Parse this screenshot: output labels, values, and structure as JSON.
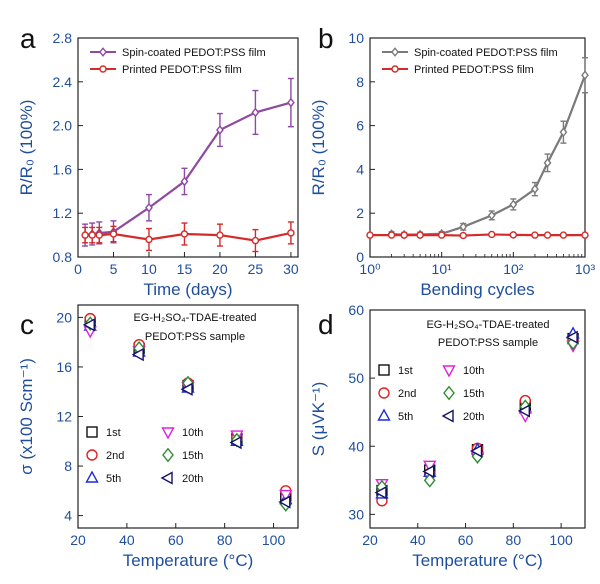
{
  "panels": {
    "a": {
      "letter": "a"
    },
    "b": {
      "letter": "b"
    },
    "c": {
      "letter": "c",
      "annotation_line1": "EG-H₂SO₄-TDAE-treated",
      "annotation_line2": "PEDOT:PSS sample"
    },
    "d": {
      "letter": "d",
      "annotation_line1": "EG-H₂SO₄-TDAE-treated",
      "annotation_line2": "PEDOT:PSS sample"
    }
  },
  "chart_data": [
    {
      "id": "a",
      "type": "line",
      "xlabel": "Time (days)",
      "ylabel": "R/R₀ (100%)",
      "xlim": [
        0,
        31
      ],
      "ylim": [
        0.8,
        2.8
      ],
      "xticks": [
        0,
        5,
        10,
        15,
        20,
        25,
        30
      ],
      "yticks": [
        0.8,
        1.2,
        1.6,
        2.0,
        2.4,
        2.8
      ],
      "xtick_labels": [
        "0",
        "5",
        "10",
        "15",
        "20",
        "25",
        "30"
      ],
      "ytick_labels": [
        "0.8",
        "1.2",
        "1.6",
        "2.0",
        "2.4",
        "2.8"
      ],
      "legend": "top-left",
      "series": [
        {
          "name": "Spin-coated PEDOT:PSS film",
          "color": "#8e4aa0",
          "marker": "diamond",
          "x": [
            1,
            2,
            3,
            5,
            10,
            15,
            20,
            25,
            30
          ],
          "y": [
            1.0,
            1.01,
            1.02,
            1.03,
            1.25,
            1.49,
            1.96,
            2.12,
            2.21
          ],
          "err": [
            0.1,
            0.1,
            0.1,
            0.1,
            0.12,
            0.12,
            0.15,
            0.2,
            0.22
          ]
        },
        {
          "name": "Printed PEDOT:PSS film",
          "color": "#d42a2a",
          "marker": "circle",
          "x": [
            1,
            2,
            3,
            5,
            10,
            15,
            20,
            25,
            30
          ],
          "y": [
            1.0,
            1.0,
            1.0,
            1.01,
            0.96,
            1.01,
            1.0,
            0.95,
            1.02
          ],
          "err": [
            0.07,
            0.07,
            0.07,
            0.07,
            0.1,
            0.1,
            0.1,
            0.1,
            0.1
          ]
        }
      ]
    },
    {
      "id": "b",
      "type": "line",
      "xscale": "log",
      "xlabel": "Bending cycles",
      "ylabel": "R/R₀ (100%)",
      "xlim": [
        1,
        1000
      ],
      "ylim": [
        0,
        10
      ],
      "xticks": [
        1,
        10,
        100,
        1000
      ],
      "yticks": [
        0,
        2,
        4,
        6,
        8,
        10
      ],
      "xtick_labels": [
        "10⁰",
        "10¹",
        "10²",
        "10³"
      ],
      "ytick_labels": [
        "0",
        "2",
        "4",
        "6",
        "8",
        "10"
      ],
      "legend": "top-left",
      "series": [
        {
          "name": "Spin-coated PEDOT:PSS film",
          "color": "#7a7a7a",
          "marker": "diamond",
          "x": [
            2,
            3,
            5,
            10,
            20,
            50,
            100,
            200,
            300,
            500,
            1000
          ],
          "y": [
            1.05,
            1.02,
            1.03,
            1.06,
            1.38,
            1.9,
            2.4,
            3.1,
            4.3,
            5.7,
            8.3
          ],
          "err": [
            0.1,
            0.1,
            0.1,
            0.1,
            0.15,
            0.2,
            0.25,
            0.3,
            0.4,
            0.5,
            0.8
          ]
        },
        {
          "name": "Printed PEDOT:PSS film",
          "color": "#d42a2a",
          "marker": "circle",
          "x": [
            1,
            2,
            3,
            5,
            10,
            20,
            50,
            100,
            200,
            300,
            500,
            1000
          ],
          "y": [
            1.0,
            1.0,
            1.0,
            1.0,
            1.0,
            0.98,
            1.03,
            1.01,
            1.0,
            1.0,
            1.0,
            1.0
          ],
          "err": [
            0.05,
            0.05,
            0.05,
            0.05,
            0.05,
            0.05,
            0.05,
            0.05,
            0.05,
            0.05,
            0.05,
            0.05
          ]
        }
      ]
    },
    {
      "id": "c",
      "type": "scatter",
      "xlabel": "Temperature (°C)",
      "ylabel": "σ (x100 Scm⁻¹)",
      "xlim": [
        20,
        110
      ],
      "ylim": [
        3,
        21
      ],
      "xticks": [
        20,
        40,
        60,
        80,
        100
      ],
      "yticks": [
        4,
        8,
        12,
        16,
        20
      ],
      "xtick_labels": [
        "20",
        "40",
        "60",
        "80",
        "100"
      ],
      "ytick_labels": [
        "4",
        "8",
        "12",
        "16",
        "20"
      ],
      "legend": "center-left",
      "series": [
        {
          "name": "1st",
          "color": "#111111",
          "marker": "square",
          "x": [
            25,
            45,
            65,
            85,
            105
          ],
          "y": [
            19.6,
            17.5,
            14.5,
            10.2,
            5.6
          ]
        },
        {
          "name": "2nd",
          "color": "#e02020",
          "marker": "circle",
          "x": [
            25,
            45,
            65,
            85,
            105
          ],
          "y": [
            19.9,
            17.8,
            14.7,
            10.3,
            6.0
          ]
        },
        {
          "name": "5th",
          "color": "#1a2fd6",
          "marker": "triangle-up",
          "x": [
            25,
            45,
            65,
            85,
            105
          ],
          "y": [
            19.3,
            17.2,
            14.3,
            10.0,
            5.3
          ]
        },
        {
          "name": "10th",
          "color": "#e020e0",
          "marker": "triangle-down",
          "x": [
            25,
            45,
            65,
            85,
            105
          ],
          "y": [
            18.9,
            17.3,
            14.4,
            10.5,
            5.7
          ]
        },
        {
          "name": "15th",
          "color": "#2e8b2e",
          "marker": "diamond",
          "x": [
            25,
            45,
            65,
            85,
            105
          ],
          "y": [
            19.5,
            17.5,
            14.7,
            10.1,
            4.9
          ]
        },
        {
          "name": "20th",
          "color": "#111166",
          "marker": "triangle-left",
          "x": [
            25,
            45,
            65,
            85,
            105
          ],
          "y": [
            19.4,
            17.0,
            14.2,
            9.9,
            5.1
          ]
        }
      ]
    },
    {
      "id": "d",
      "type": "scatter",
      "xlabel": "Temperature (°C)",
      "ylabel": "S (μVK⁻¹)",
      "xlim": [
        20,
        110
      ],
      "ylim": [
        28,
        60
      ],
      "xticks": [
        20,
        40,
        60,
        80,
        100
      ],
      "yticks": [
        30,
        40,
        50,
        60
      ],
      "xtick_labels": [
        "20",
        "40",
        "60",
        "80",
        "100"
      ],
      "ytick_labels": [
        "30",
        "40",
        "50",
        "60"
      ],
      "legend": "center-left",
      "series": [
        {
          "name": "1st",
          "color": "#111111",
          "marker": "square",
          "x": [
            25,
            45,
            65,
            85,
            105
          ],
          "y": [
            33.5,
            36.5,
            39.5,
            46.0,
            55.8
          ]
        },
        {
          "name": "2nd",
          "color": "#e02020",
          "marker": "circle",
          "x": [
            25,
            45,
            65,
            85,
            105
          ],
          "y": [
            32.0,
            36.0,
            39.7,
            46.7,
            55.5
          ]
        },
        {
          "name": "5th",
          "color": "#1a2fd6",
          "marker": "triangle-up",
          "x": [
            25,
            45,
            65,
            85,
            105
          ],
          "y": [
            33.0,
            36.2,
            39.5,
            45.5,
            56.5
          ]
        },
        {
          "name": "10th",
          "color": "#e020e0",
          "marker": "triangle-down",
          "x": [
            25,
            45,
            65,
            85,
            105
          ],
          "y": [
            34.5,
            37.2,
            38.5,
            44.5,
            54.8
          ]
        },
        {
          "name": "15th",
          "color": "#2e8b2e",
          "marker": "diamond",
          "x": [
            25,
            45,
            65,
            85,
            105
          ],
          "y": [
            34.0,
            35.0,
            38.5,
            45.8,
            55.2
          ]
        },
        {
          "name": "20th",
          "color": "#111166",
          "marker": "triangle-left",
          "x": [
            25,
            45,
            65,
            85,
            105
          ],
          "y": [
            33.2,
            36.3,
            39.3,
            45.2,
            56.0
          ]
        }
      ]
    }
  ]
}
